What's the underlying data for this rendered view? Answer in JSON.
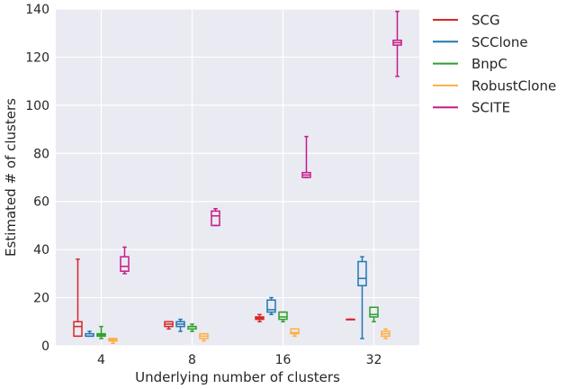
{
  "chart_data": {
    "type": "box",
    "xlabel": "Underlying number of clusters",
    "ylabel": "Estimated # of clusters",
    "ylim": [
      0,
      140
    ],
    "yticks": [
      0,
      20,
      40,
      60,
      80,
      100,
      120,
      140
    ],
    "categories": [
      "4",
      "8",
      "16",
      "32"
    ],
    "grid": true,
    "background": "#eaeaf2",
    "legend_position": "outside right",
    "series": [
      {
        "name": "SCG",
        "color": "#d62728",
        "boxes": [
          {
            "min": 4,
            "q1": 4,
            "median": 8,
            "q3": 10,
            "max": 36
          },
          {
            "min": 7,
            "q1": 8,
            "median": 9,
            "q3": 10,
            "max": 10
          },
          {
            "min": 10,
            "q1": 11,
            "median": 11.5,
            "q3": 12,
            "max": 13
          },
          {
            "min": 11,
            "q1": 11,
            "median": 11,
            "q3": 11,
            "max": 11
          }
        ]
      },
      {
        "name": "SCClone",
        "color": "#1f77b4",
        "boxes": [
          {
            "min": 4,
            "q1": 4,
            "median": 4,
            "q3": 5,
            "max": 6
          },
          {
            "min": 6,
            "q1": 8,
            "median": 9,
            "q3": 10,
            "max": 11
          },
          {
            "min": 13,
            "q1": 14,
            "median": 15,
            "q3": 19,
            "max": 20
          },
          {
            "min": 3,
            "q1": 25,
            "median": 28,
            "q3": 35,
            "max": 37
          }
        ]
      },
      {
        "name": "BnpC",
        "color": "#2ca02c",
        "boxes": [
          {
            "min": 3,
            "q1": 4,
            "median": 4.5,
            "q3": 5,
            "max": 8
          },
          {
            "min": 6,
            "q1": 7,
            "median": 8,
            "q3": 8,
            "max": 9
          },
          {
            "min": 10,
            "q1": 11,
            "median": 12,
            "q3": 14,
            "max": 14
          },
          {
            "min": 10,
            "q1": 12,
            "median": 13,
            "q3": 16,
            "max": 16
          }
        ]
      },
      {
        "name": "RobustClone",
        "color": "#ffae42",
        "boxes": [
          {
            "min": 1,
            "q1": 2,
            "median": 2.5,
            "q3": 3,
            "max": 3
          },
          {
            "min": 2,
            "q1": 3,
            "median": 4,
            "q3": 5,
            "max": 5
          },
          {
            "min": 4,
            "q1": 5,
            "median": 5.5,
            "q3": 7,
            "max": 7
          },
          {
            "min": 3,
            "q1": 4,
            "median": 5,
            "q3": 6,
            "max": 7
          }
        ]
      },
      {
        "name": "SCITE",
        "color": "#c51b8a",
        "boxes": [
          {
            "min": 30,
            "q1": 31,
            "median": 33,
            "q3": 37,
            "max": 41
          },
          {
            "min": 50,
            "q1": 50,
            "median": 54,
            "q3": 56,
            "max": 57
          },
          {
            "min": 70,
            "q1": 70,
            "median": 71,
            "q3": 72,
            "max": 87
          },
          {
            "min": 112,
            "q1": 125,
            "median": 126,
            "q3": 127,
            "max": 139
          }
        ]
      }
    ]
  }
}
